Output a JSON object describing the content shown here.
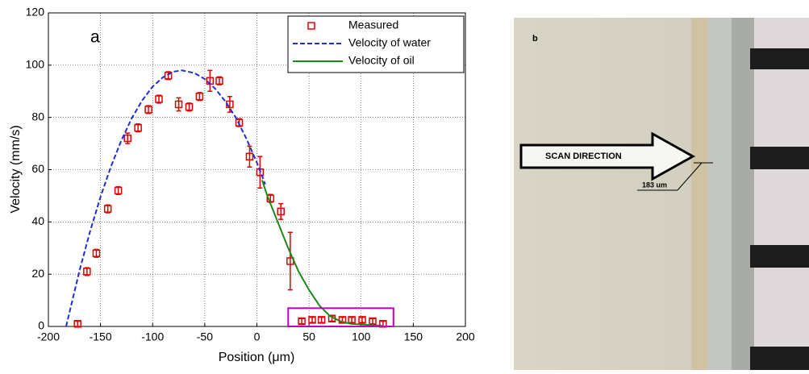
{
  "chart_data": {
    "type": "line",
    "panel_label": "a",
    "x_label": "Position (μm)",
    "y_label": "Velocity (mm/s)",
    "xlim": [
      -200,
      200
    ],
    "xticks": [
      -200,
      -150,
      -100,
      -50,
      0,
      50,
      100,
      150,
      200
    ],
    "ylim": [
      0,
      120
    ],
    "yticks": [
      0,
      20,
      40,
      60,
      80,
      100,
      120
    ],
    "grid": true,
    "legend": "upper-right",
    "series": [
      {
        "name": "Measured",
        "color": "#e00000",
        "marker": "square",
        "x": [
          -172,
          -163,
          -154,
          -143,
          -133,
          -124,
          -114,
          -104,
          -94,
          -85,
          -75,
          -65,
          -55,
          -45,
          -36,
          -26,
          -17,
          -7,
          3,
          13,
          23,
          32,
          43,
          53,
          62,
          72,
          82,
          91,
          101,
          111,
          121
        ],
        "values": [
          1,
          21,
          28,
          45,
          52,
          72,
          76,
          83,
          87,
          96,
          85,
          84,
          88,
          94,
          94,
          85,
          78,
          65,
          59,
          49,
          44,
          25,
          2,
          2.5,
          2.5,
          3,
          2.5,
          2.5,
          2.5,
          2,
          1
        ],
        "errors": [
          1,
          1.5,
          1.5,
          1.5,
          1.5,
          2,
          1.5,
          1.5,
          1.5,
          1.5,
          2.5,
          1.5,
          1.5,
          4,
          1.5,
          3,
          1.5,
          4,
          6,
          1.5,
          3,
          11,
          1,
          1,
          1,
          1,
          1,
          1,
          1,
          1,
          1
        ]
      },
      {
        "name": "Velocity of water",
        "color": "#1f2fd0",
        "dash": true,
        "x": [
          -183,
          -170,
          -160,
          -150,
          -140,
          -130,
          -120,
          -110,
          -100,
          -90,
          -80,
          -72,
          -60,
          -50,
          -40,
          -30,
          -20,
          -10,
          0,
          8
        ],
        "values": [
          0,
          21.6,
          36.4,
          49.6,
          61.2,
          71.2,
          79.7,
          86.5,
          91.8,
          95.4,
          97.5,
          98,
          97,
          94.7,
          91,
          86,
          79.8,
          71.8,
          62.7,
          54.4
        ]
      },
      {
        "name": "Velocity of oil",
        "color": "#1a8a1a",
        "dash": false,
        "x": [
          5,
          10,
          20,
          30,
          40,
          50,
          60,
          70,
          80,
          90,
          110,
          120
        ],
        "values": [
          56,
          50,
          40,
          30,
          21,
          14,
          8,
          4,
          2,
          1,
          0.5,
          0.3
        ]
      }
    ],
    "highlight_box": {
      "x": [
        30,
        131
      ],
      "y": [
        0,
        7
      ],
      "color": "#c000c0"
    }
  },
  "photo": {
    "panel_label": "b",
    "arrow_text": "SCAN DIRECTION",
    "measurement": "183 um"
  }
}
